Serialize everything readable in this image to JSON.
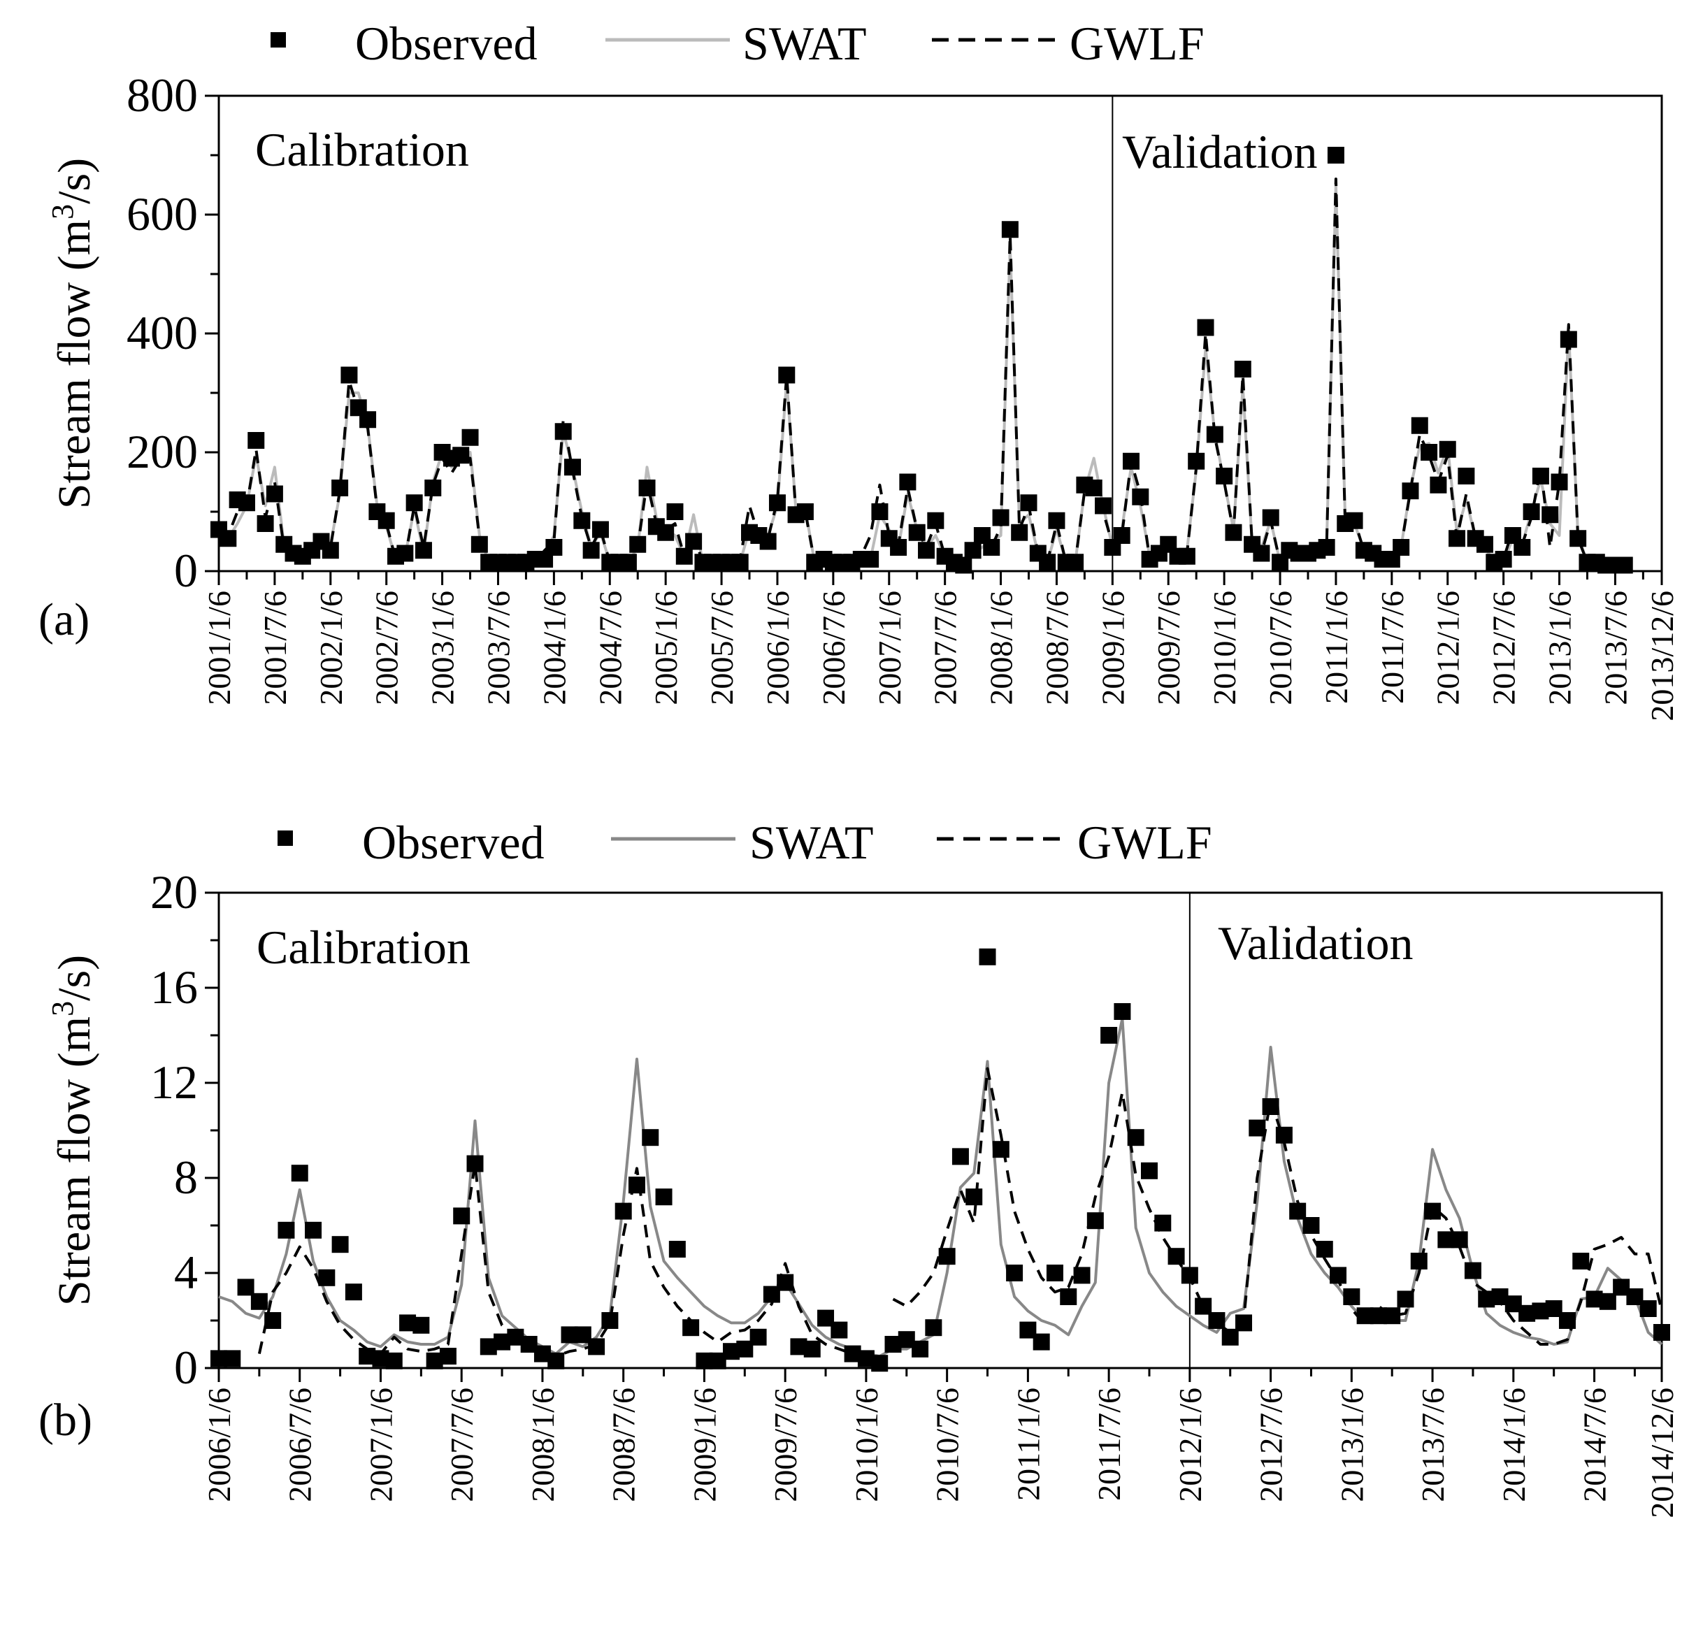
{
  "chart_data": [
    {
      "panel_label": "(a)",
      "type": "line",
      "ylabel": "Stream flow (m3/s)",
      "ylabel_parts": {
        "main": "Stream flow (m",
        "sup": "3",
        "tail": "/s)"
      },
      "ylim": [
        0,
        800
      ],
      "yticks": [
        "0",
        "200",
        "400",
        "600",
        "800"
      ],
      "xlim": [
        "2001/1/6",
        "2013/12/6"
      ],
      "xtick_labels": [
        "2001/1/6",
        "2001/7/6",
        "2002/1/6",
        "2002/7/6",
        "2003/1/6",
        "2003/7/6",
        "2004/1/6",
        "2004/7/6",
        "2005/1/6",
        "2005/7/6",
        "2006/1/6",
        "2006/7/6",
        "2007/1/6",
        "2007/7/6",
        "2008/1/6",
        "2008/7/6",
        "2009/1/6",
        "2009/7/6",
        "2010/1/6",
        "2010/7/6",
        "2011/1/6",
        "2011/7/6",
        "2012/1/6",
        "2012/7/6",
        "2013/1/6",
        "2013/7/6",
        "2013/12/6"
      ],
      "divider_x": "2009/1/6",
      "region_labels": {
        "left": "Calibration",
        "right": "Validation"
      },
      "legend_position": "top-center",
      "months_start": "2001/1/6",
      "series": [
        {
          "name": "Observed",
          "style": "marker",
          "values": [
            70,
            55,
            120,
            115,
            220,
            80,
            130,
            45,
            30,
            25,
            35,
            50,
            35,
            140,
            330,
            275,
            255,
            100,
            85,
            25,
            30,
            115,
            35,
            140,
            200,
            190,
            195,
            225,
            45,
            15,
            15,
            15,
            15,
            15,
            20,
            20,
            40,
            235,
            175,
            85,
            35,
            70,
            15,
            15,
            15,
            45,
            140,
            75,
            65,
            100,
            25,
            50,
            15,
            15,
            15,
            15,
            15,
            65,
            60,
            50,
            115,
            330,
            95,
            100,
            15,
            20,
            15,
            15,
            15,
            20,
            20,
            100,
            55,
            40,
            150,
            65,
            35,
            85,
            25,
            15,
            10,
            35,
            60,
            40,
            90,
            575,
            65,
            115,
            30,
            15,
            85,
            15,
            15,
            145,
            140,
            110,
            40,
            60,
            185,
            125,
            20,
            30,
            45,
            25,
            25,
            185,
            410,
            230,
            160,
            65,
            340,
            45,
            30,
            90,
            15,
            35,
            30,
            30,
            35,
            40,
            700,
            80,
            85,
            35,
            30,
            20,
            20,
            40,
            135,
            245,
            200,
            145,
            205,
            55,
            160,
            55,
            45,
            15,
            20,
            60,
            40,
            100,
            160,
            95,
            150,
            390,
            55,
            15,
            15,
            10,
            10,
            10
          ]
        },
        {
          "name": "SWAT",
          "style": "solid",
          "color": "#bbbbbb",
          "values": [
            65,
            55,
            80,
            110,
            195,
            110,
            175,
            45,
            25,
            20,
            35,
            55,
            45,
            130,
            300,
            300,
            245,
            110,
            75,
            20,
            25,
            105,
            30,
            150,
            200,
            175,
            190,
            200,
            60,
            15,
            15,
            15,
            15,
            15,
            20,
            30,
            60,
            235,
            175,
            100,
            40,
            65,
            15,
            15,
            15,
            40,
            175,
            90,
            70,
            60,
            25,
            95,
            15,
            15,
            15,
            15,
            15,
            70,
            70,
            60,
            110,
            320,
            100,
            105,
            15,
            15,
            15,
            15,
            15,
            20,
            20,
            95,
            70,
            40,
            130,
            70,
            40,
            60,
            25,
            15,
            10,
            30,
            40,
            50,
            60,
            545,
            80,
            95,
            30,
            15,
            70,
            15,
            15,
            135,
            190,
            110,
            40,
            70,
            175,
            110,
            25,
            30,
            50,
            35,
            35,
            170,
            375,
            230,
            150,
            70,
            310,
            45,
            40,
            85,
            15,
            35,
            30,
            25,
            35,
            40,
            650,
            85,
            80,
            35,
            40,
            15,
            15,
            40,
            140,
            210,
            215,
            165,
            210,
            65,
            120,
            55,
            40,
            15,
            15,
            55,
            45,
            100,
            155,
            80,
            60,
            405,
            60,
            15,
            15,
            10,
            15,
            20
          ]
        },
        {
          "name": "GWLF",
          "style": "dashed",
          "color": "#000000",
          "values": [
            65,
            60,
            100,
            110,
            205,
            90,
            150,
            40,
            25,
            20,
            35,
            45,
            40,
            135,
            320,
            270,
            240,
            105,
            80,
            20,
            20,
            110,
            40,
            145,
            190,
            165,
            190,
            190,
            55,
            15,
            15,
            15,
            15,
            15,
            15,
            35,
            50,
            255,
            170,
            90,
            40,
            70,
            15,
            15,
            15,
            40,
            150,
            80,
            70,
            80,
            25,
            60,
            15,
            15,
            15,
            15,
            20,
            110,
            60,
            55,
            120,
            330,
            95,
            100,
            15,
            15,
            15,
            15,
            15,
            25,
            60,
            145,
            60,
            45,
            140,
            70,
            40,
            80,
            25,
            15,
            10,
            35,
            75,
            40,
            75,
            565,
            70,
            110,
            30,
            15,
            80,
            15,
            15,
            135,
            145,
            100,
            45,
            60,
            185,
            130,
            20,
            25,
            40,
            30,
            30,
            175,
            400,
            225,
            150,
            65,
            330,
            45,
            30,
            85,
            15,
            30,
            30,
            30,
            30,
            40,
            660,
            75,
            85,
            35,
            30,
            15,
            15,
            40,
            135,
            230,
            195,
            150,
            195,
            55,
            130,
            55,
            45,
            15,
            20,
            70,
            45,
            90,
            175,
            40,
            150,
            415,
            55,
            15,
            15,
            10,
            15,
            15
          ]
        }
      ]
    },
    {
      "panel_label": "(b)",
      "type": "line",
      "ylabel": "Stream flow (m3/s)",
      "ylabel_parts": {
        "main": "Stream flow (m",
        "sup": "3",
        "tail": "/s)"
      },
      "ylim": [
        0,
        20
      ],
      "yticks": [
        "0",
        "4",
        "8",
        "12",
        "16",
        "20"
      ],
      "xlim": [
        "2006/1/6",
        "2014/12/6"
      ],
      "xtick_labels": [
        "2006/1/6",
        "2006/7/6",
        "2007/1/6",
        "2007/7/6",
        "2008/1/6",
        "2008/7/6",
        "2009/1/6",
        "2009/7/6",
        "2010/1/6",
        "2010/7/6",
        "2011/1/6",
        "2011/7/6",
        "2012/1/6",
        "2012/7/6",
        "2013/1/6",
        "2013/7/6",
        "2014/1/6",
        "2014/7/6",
        "2014/12/6"
      ],
      "divider_x": "2012/1/6",
      "region_labels": {
        "left": "Calibration",
        "right": "Validation"
      },
      "legend_position": "top-center",
      "months_start": "2006/1/6",
      "series": [
        {
          "name": "Observed",
          "style": "marker",
          "values": [
            0.4,
            0.4,
            3.4,
            2.8,
            2.0,
            5.8,
            8.2,
            5.8,
            3.8,
            5.2,
            3.2,
            0.5,
            0.4,
            0.3,
            1.9,
            1.8,
            0.3,
            0.5,
            6.4,
            8.6,
            0.9,
            1.1,
            1.3,
            1.0,
            0.6,
            0.3,
            1.4,
            1.4,
            0.9,
            2.0,
            6.6,
            7.7,
            9.7,
            7.2,
            5.0,
            1.7,
            0.3,
            0.3,
            0.7,
            0.8,
            1.3,
            3.1,
            3.6,
            0.9,
            0.8,
            2.1,
            1.6,
            0.6,
            0.4,
            0.2,
            1.0,
            1.2,
            0.8,
            1.7,
            4.7,
            8.9,
            7.2,
            17.3,
            9.2,
            4.0,
            1.6,
            1.1,
            4.0,
            3.0,
            3.9,
            6.2,
            14.0,
            15.0,
            9.7,
            8.3,
            6.1,
            4.7,
            3.9,
            2.6,
            2.0,
            1.3,
            1.9,
            10.1,
            11.0,
            9.8,
            6.6,
            6.0,
            5.0,
            3.9,
            3.0,
            2.2,
            2.2,
            2.2,
            2.9,
            4.5,
            6.6,
            5.4,
            5.4,
            4.1,
            2.9,
            3.0,
            2.7,
            2.3,
            2.4,
            2.5,
            2.0,
            4.5,
            2.9,
            2.8,
            3.4,
            3.0,
            2.5,
            1.5
          ]
        },
        {
          "name": "SWAT",
          "style": "solid",
          "color": "#888888",
          "values": [
            3.0,
            2.8,
            2.3,
            2.1,
            3.0,
            4.8,
            7.5,
            4.5,
            3.0,
            2.0,
            1.6,
            1.1,
            0.9,
            1.4,
            1.1,
            1.0,
            1.0,
            1.3,
            3.5,
            10.4,
            3.8,
            2.2,
            1.7,
            1.2,
            0.9,
            0.6,
            1.1,
            0.9,
            1.3,
            2.2,
            7.0,
            13.0,
            6.8,
            4.5,
            3.8,
            3.2,
            2.6,
            2.2,
            1.9,
            1.9,
            2.3,
            3.0,
            3.6,
            2.7,
            1.8,
            1.3,
            1.0,
            0.8,
            0.6,
            0.5,
            0.8,
            0.8,
            1.1,
            1.4,
            4.0,
            7.6,
            8.2,
            12.9,
            5.2,
            3.0,
            2.4,
            2.0,
            1.8,
            1.4,
            2.6,
            3.6,
            12.0,
            14.7,
            5.9,
            4.0,
            3.2,
            2.6,
            2.2,
            1.8,
            1.5,
            2.3,
            2.5,
            7.0,
            13.5,
            8.7,
            6.3,
            4.8,
            4.0,
            3.4,
            2.6,
            2.0,
            2.1,
            2.0,
            2.0,
            4.5,
            9.2,
            7.5,
            6.3,
            4.1,
            2.3,
            1.8,
            1.5,
            1.3,
            1.2,
            1.0,
            1.1,
            2.9,
            3.0,
            4.2,
            3.7,
            3.0,
            1.5,
            1.0
          ]
        },
        {
          "name": "GWLF",
          "style": "dashed",
          "color": "#000000",
          "values": [
            null,
            null,
            null,
            0.6,
            3.2,
            4.0,
            5.1,
            4.2,
            2.8,
            1.8,
            1.2,
            0.8,
            0.6,
            1.3,
            0.8,
            0.7,
            0.8,
            1.0,
            4.8,
            8.6,
            3.2,
            1.8,
            1.4,
            1.0,
            0.7,
            0.5,
            0.7,
            0.8,
            1.0,
            1.9,
            5.6,
            8.4,
            4.5,
            3.4,
            2.6,
            2.0,
            1.5,
            1.1,
            1.5,
            1.6,
            2.0,
            2.7,
            4.4,
            2.6,
            1.4,
            1.0,
            0.8,
            0.6,
            0.5,
            null,
            2.9,
            2.6,
            3.2,
            4.0,
            5.8,
            7.5,
            6.1,
            12.6,
            9.8,
            6.6,
            5.0,
            3.8,
            3.2,
            3.4,
            4.8,
            7.2,
            8.9,
            11.6,
            8.1,
            6.7,
            5.5,
            4.6,
            3.8,
            2.6,
            1.9,
            1.5,
            2.0,
            8.0,
            11.3,
            9.5,
            7.0,
            5.6,
            4.6,
            3.7,
            2.5,
            1.8,
            2.6,
            2.2,
            2.3,
            4.0,
            6.8,
            6.3,
            5.1,
            3.6,
            3.2,
            2.8,
            2.0,
            1.5,
            1.0,
            1.0,
            1.2,
            2.8,
            5.0,
            5.2,
            5.5,
            4.8,
            4.8,
            2.4
          ]
        }
      ]
    }
  ]
}
